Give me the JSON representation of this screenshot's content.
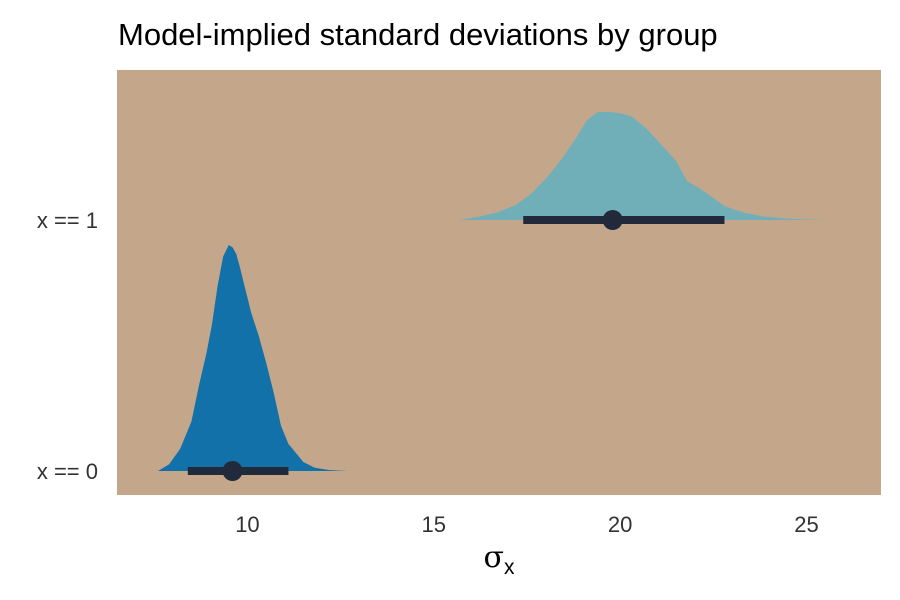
{
  "chart_data": {
    "type": "area",
    "title": "Model-implied standard deviations by group",
    "xlabel": "σ",
    "xlabel_subscript": "x",
    "ylabel": "",
    "xlim": [
      6.5,
      27
    ],
    "x_ticks": [
      10,
      15,
      20,
      25
    ],
    "categories": [
      "x == 0",
      "x == 1"
    ],
    "grid": false,
    "legend": "none",
    "colors": {
      "panel_background": "#C4A78B",
      "x_eq_0": "#1271A8",
      "x_eq_1": "#71AFB8",
      "interval": "#212A3B"
    },
    "series": [
      {
        "category": "x == 0",
        "density": {
          "x": [
            7.6,
            7.9,
            8.2,
            8.5,
            8.7,
            8.9,
            9.05,
            9.2,
            9.35,
            9.5,
            9.6,
            9.7,
            9.8,
            9.95,
            10.1,
            10.3,
            10.5,
            10.7,
            10.9,
            11.1,
            11.3,
            11.5,
            11.8,
            12.2,
            12.7
          ],
          "y": [
            0.0,
            0.03,
            0.1,
            0.22,
            0.38,
            0.52,
            0.65,
            0.82,
            0.95,
            1.0,
            0.99,
            0.96,
            0.9,
            0.8,
            0.7,
            0.6,
            0.48,
            0.35,
            0.2,
            0.12,
            0.08,
            0.04,
            0.015,
            0.004,
            0.0
          ]
        },
        "point": 9.6,
        "interval": [
          8.4,
          11.1
        ]
      },
      {
        "category": "x == 1",
        "density": {
          "x": [
            15.7,
            16.2,
            16.7,
            17.2,
            17.6,
            18.0,
            18.4,
            18.8,
            19.1,
            19.4,
            19.7,
            20.0,
            20.3,
            20.7,
            21.1,
            21.5,
            21.8,
            22.1,
            22.4,
            22.8,
            23.3,
            23.8,
            24.4,
            25.0,
            25.7
          ],
          "y": [
            0.0,
            0.03,
            0.07,
            0.14,
            0.24,
            0.38,
            0.55,
            0.75,
            0.92,
            1.0,
            1.0,
            0.99,
            0.96,
            0.85,
            0.7,
            0.55,
            0.36,
            0.3,
            0.23,
            0.13,
            0.07,
            0.035,
            0.015,
            0.005,
            0.0
          ]
        },
        "point": 19.8,
        "interval": [
          17.4,
          22.8
        ]
      }
    ]
  }
}
